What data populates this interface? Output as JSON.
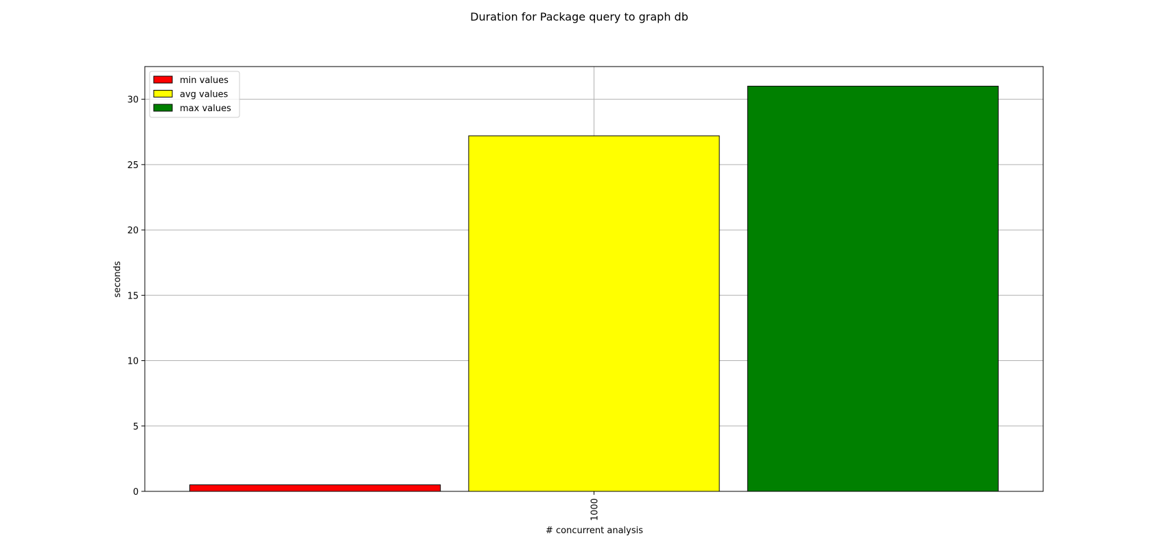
{
  "chart_data": {
    "type": "bar",
    "title": "Duration for Package query to graph db",
    "xlabel": "# concurrent analysis",
    "ylabel": "seconds",
    "categories": [
      "1000"
    ],
    "series": [
      {
        "name": "min values",
        "values": [
          0.5
        ],
        "color": "#ff0000"
      },
      {
        "name": "avg values",
        "values": [
          27.2
        ],
        "color": "#ffff00"
      },
      {
        "name": "max values",
        "values": [
          31.0
        ],
        "color": "#008000"
      }
    ],
    "ylim": [
      0,
      32.5
    ],
    "yticks": [
      0,
      5,
      10,
      15,
      20,
      25,
      30
    ],
    "grid": true,
    "legend_position": "top-left"
  }
}
